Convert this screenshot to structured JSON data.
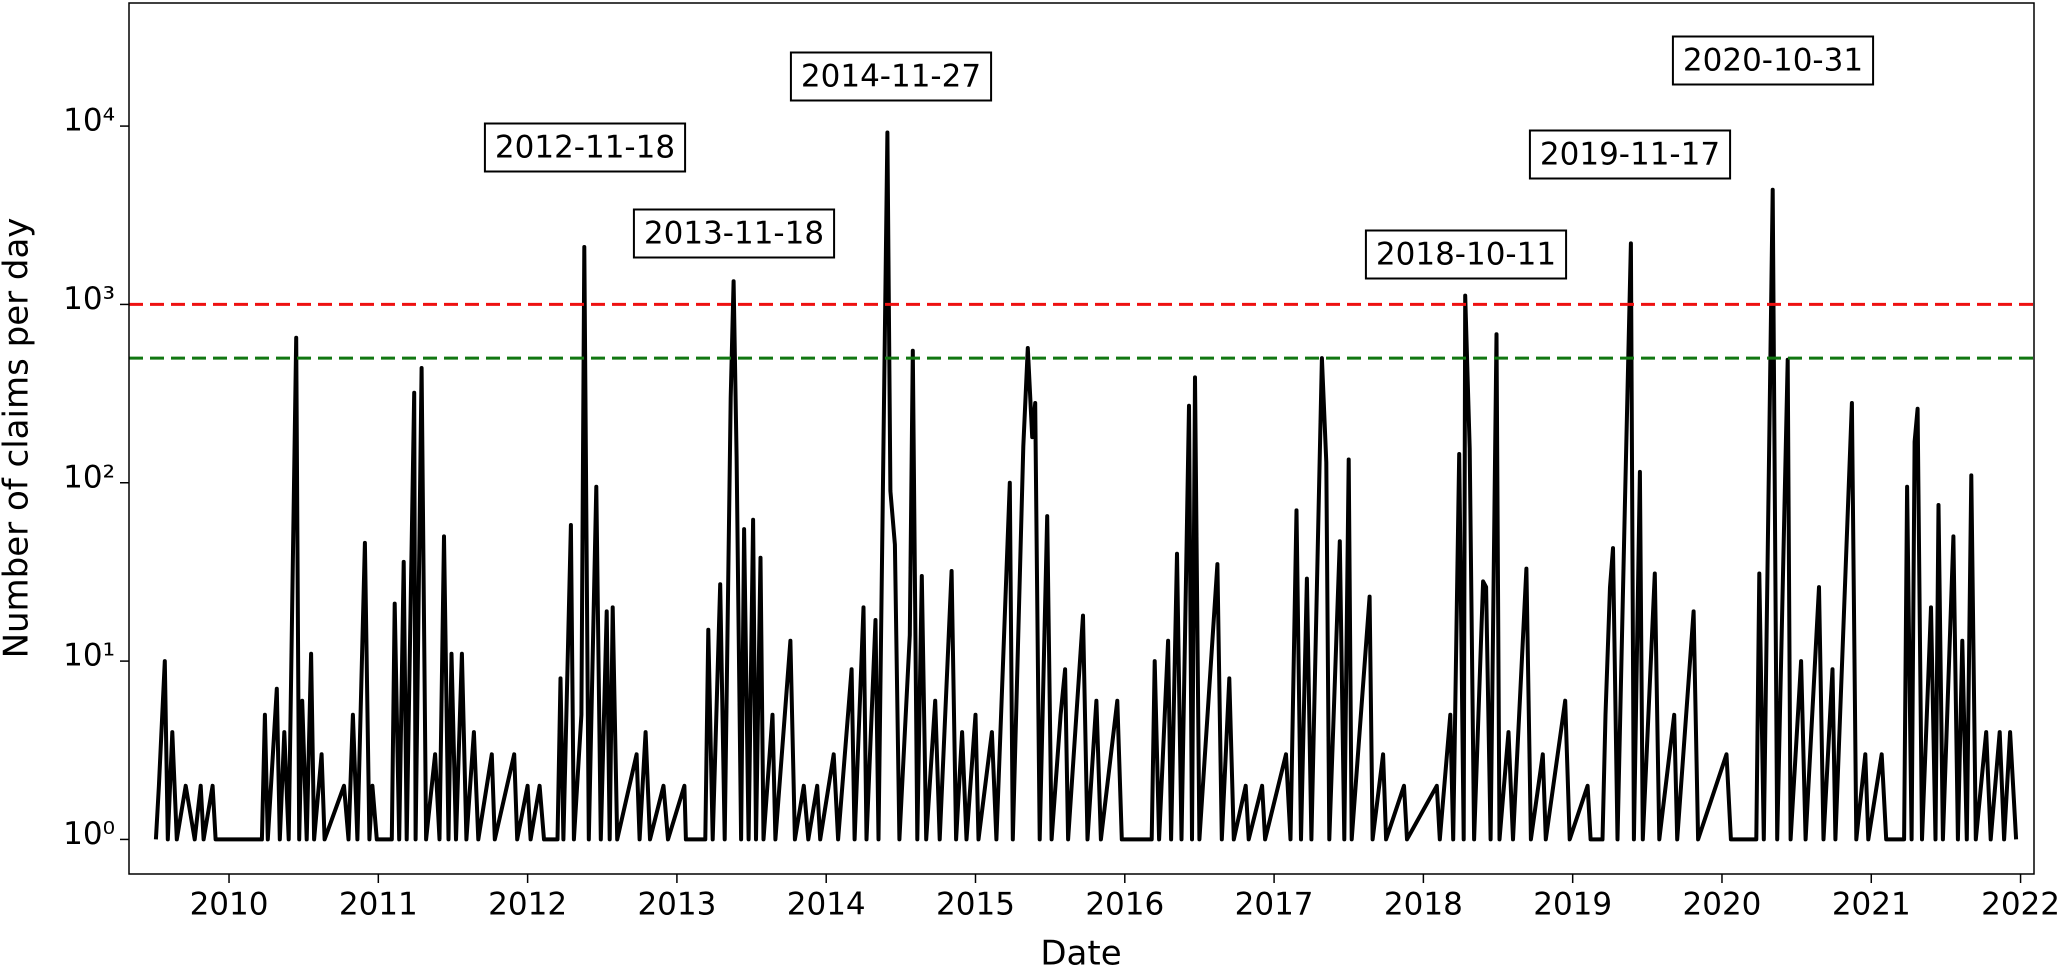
{
  "chart_data": {
    "type": "line",
    "xlabel": "Date",
    "ylabel": "Number of claims per day",
    "log_y": true,
    "color": "#000000",
    "xlim": [
      2009.33,
      2022.09
    ],
    "xticks": [
      2010,
      2011,
      2012,
      2013,
      2014,
      2015,
      2016,
      2017,
      2018,
      2019,
      2020,
      2021,
      2022
    ],
    "ylim": [
      0.64,
      49000
    ],
    "yticks": [
      {
        "value": 1,
        "label": "10⁰"
      },
      {
        "value": 10,
        "label": "10¹"
      },
      {
        "value": 100,
        "label": "10²"
      },
      {
        "value": 1000,
        "label": "10³"
      },
      {
        "value": 10000,
        "label": "10⁴"
      }
    ],
    "hlines": [
      {
        "value": 1000,
        "color": "#ee1111"
      },
      {
        "value": 500,
        "color": "#117711"
      }
    ],
    "annotations": [
      "2012-11-18",
      "2013-11-18",
      "2014-11-27",
      "2018-10-11",
      "2019-11-17",
      "2020-10-31"
    ],
    "x": [
      2009.51,
      2009.53,
      2009.57,
      2009.59,
      2009.62,
      2009.65,
      2009.71,
      2009.77,
      2009.81,
      2009.83,
      2009.89,
      2009.91,
      2010.22,
      2010.24,
      2010.26,
      2010.32,
      2010.34,
      2010.37,
      2010.4,
      2010.45,
      2010.47,
      2010.49,
      2010.52,
      2010.55,
      2010.57,
      2010.62,
      2010.64,
      2010.77,
      2010.8,
      2010.83,
      2010.86,
      2010.91,
      2010.94,
      2010.96,
      2010.99,
      2011.09,
      2011.11,
      2011.14,
      2011.17,
      2011.19,
      2011.24,
      2011.25,
      2011.29,
      2011.32,
      2011.38,
      2011.41,
      2011.44,
      2011.47,
      2011.49,
      2011.52,
      2011.56,
      2011.59,
      2011.64,
      2011.67,
      2011.76,
      2011.78,
      2011.91,
      2011.93,
      2012.0,
      2012.02,
      2012.08,
      2012.11,
      2012.2,
      2012.22,
      2012.24,
      2012.29,
      2012.31,
      2012.36,
      2012.38,
      2012.41,
      2012.46,
      2012.49,
      2012.53,
      2012.55,
      2012.57,
      2012.6,
      2012.73,
      2012.75,
      2012.79,
      2012.82,
      2012.91,
      2012.94,
      2013.05,
      2013.06,
      2013.19,
      2013.21,
      2013.24,
      2013.29,
      2013.32,
      2013.36,
      2013.38,
      2013.4,
      2013.43,
      2013.45,
      2013.48,
      2013.51,
      2013.53,
      2013.56,
      2013.58,
      2013.64,
      2013.66,
      2013.76,
      2013.79,
      2013.85,
      2013.88,
      2013.94,
      2013.96,
      2014.05,
      2014.08,
      2014.17,
      2014.19,
      2014.25,
      2014.27,
      2014.33,
      2014.35,
      2014.41,
      2014.43,
      2014.46,
      2014.49,
      2014.56,
      2014.58,
      2014.61,
      2014.64,
      2014.67,
      2014.73,
      2014.76,
      2014.84,
      2014.87,
      2014.91,
      2014.94,
      2015.0,
      2015.02,
      2015.11,
      2015.14,
      2015.23,
      2015.25,
      2015.32,
      2015.35,
      2015.38,
      2015.4,
      2015.43,
      2015.48,
      2015.51,
      2015.57,
      2015.6,
      2015.62,
      2015.72,
      2015.75,
      2015.81,
      2015.84,
      2015.95,
      2015.98,
      2016.18,
      2016.2,
      2016.23,
      2016.29,
      2016.31,
      2016.35,
      2016.38,
      2016.43,
      2016.45,
      2016.47,
      2016.5,
      2016.62,
      2016.65,
      2016.7,
      2016.73,
      2016.81,
      2016.83,
      2016.92,
      2016.94,
      2017.08,
      2017.11,
      2017.15,
      2017.18,
      2017.22,
      2017.25,
      2017.32,
      2017.35,
      2017.37,
      2017.44,
      2017.47,
      2017.5,
      2017.52,
      2017.64,
      2017.66,
      2017.73,
      2017.75,
      2017.87,
      2017.89,
      2018.09,
      2018.11,
      2018.18,
      2018.2,
      2018.24,
      2018.27,
      2018.28,
      2018.31,
      2018.34,
      2018.4,
      2018.42,
      2018.45,
      2018.49,
      2018.51,
      2018.57,
      2018.6,
      2018.69,
      2018.72,
      2018.8,
      2018.82,
      2018.95,
      2018.98,
      2019.1,
      2019.12,
      2019.2,
      2019.22,
      2019.25,
      2019.27,
      2019.3,
      2019.35,
      2019.39,
      2019.41,
      2019.45,
      2019.47,
      2019.55,
      2019.58,
      2019.68,
      2019.7,
      2019.81,
      2019.84,
      2020.03,
      2020.06,
      2020.23,
      2020.25,
      2020.28,
      2020.34,
      2020.37,
      2020.44,
      2020.46,
      2020.53,
      2020.56,
      2020.65,
      2020.68,
      2020.74,
      2020.76,
      2020.87,
      2020.9,
      2020.96,
      2020.98,
      2021.07,
      2021.1,
      2021.22,
      2021.24,
      2021.27,
      2021.29,
      2021.31,
      2021.34,
      2021.4,
      2021.43,
      2021.45,
      2021.48,
      2021.55,
      2021.58,
      2021.61,
      2021.64,
      2021.67,
      2021.7,
      2021.77,
      2021.8,
      2021.86,
      2021.89,
      2021.93,
      2021.97
    ],
    "values": [
      1,
      2,
      10,
      1,
      4,
      1,
      2,
      1,
      2,
      1,
      2,
      1,
      1,
      5,
      1,
      7,
      1,
      4,
      1,
      650,
      1,
      6,
      1,
      11,
      1,
      3,
      1,
      2,
      1,
      5,
      1,
      46,
      1,
      2,
      1,
      1,
      21,
      1,
      36,
      1,
      320,
      1,
      440,
      1,
      3,
      1,
      50,
      1,
      11,
      1,
      11,
      1,
      4,
      1,
      3,
      1,
      3,
      1,
      2,
      1,
      2,
      1,
      1,
      8,
      1,
      58,
      1,
      5,
      2100,
      1,
      95,
      1,
      19,
      1,
      20,
      1,
      3,
      1,
      4,
      1,
      2,
      1,
      2,
      1,
      1,
      15,
      1,
      27,
      1,
      300,
      1350,
      140,
      1,
      55,
      1,
      62,
      1,
      38,
      1,
      5,
      1,
      13,
      1,
      2,
      1,
      2,
      1,
      3,
      1,
      9,
      1,
      20,
      1,
      17,
      1,
      9200,
      90,
      45,
      1,
      14,
      550,
      1,
      30,
      1,
      6,
      1,
      32,
      1,
      4,
      1,
      5,
      1,
      4,
      1,
      100,
      1,
      160,
      570,
      180,
      280,
      1,
      65,
      1,
      5,
      9,
      1,
      18,
      1,
      6,
      1,
      6,
      1,
      1,
      10,
      1,
      13,
      1,
      40,
      1,
      270,
      1,
      390,
      1,
      35,
      1,
      8,
      1,
      2,
      1,
      2,
      1,
      3,
      1,
      70,
      1,
      29,
      1,
      500,
      130,
      1,
      47,
      1,
      135,
      1,
      23,
      1,
      3,
      1,
      2,
      1,
      2,
      1,
      5,
      1,
      145,
      1,
      1120,
      155,
      1,
      28,
      26,
      1,
      680,
      1,
      4,
      1,
      33,
      1,
      3,
      1,
      6,
      1,
      2,
      1,
      1,
      5,
      26,
      43,
      1,
      75,
      2200,
      1,
      115,
      1,
      31,
      1,
      5,
      1,
      19,
      1,
      3,
      1,
      1,
      31,
      1,
      4400,
      1,
      490,
      1,
      10,
      1,
      26,
      1,
      9,
      1,
      280,
      1,
      3,
      1,
      3,
      1,
      1,
      95,
      1,
      170,
      260,
      1,
      20,
      1,
      75,
      1,
      50,
      1,
      13,
      1,
      110,
      1,
      4,
      1,
      4,
      1,
      4,
      1
    ]
  }
}
